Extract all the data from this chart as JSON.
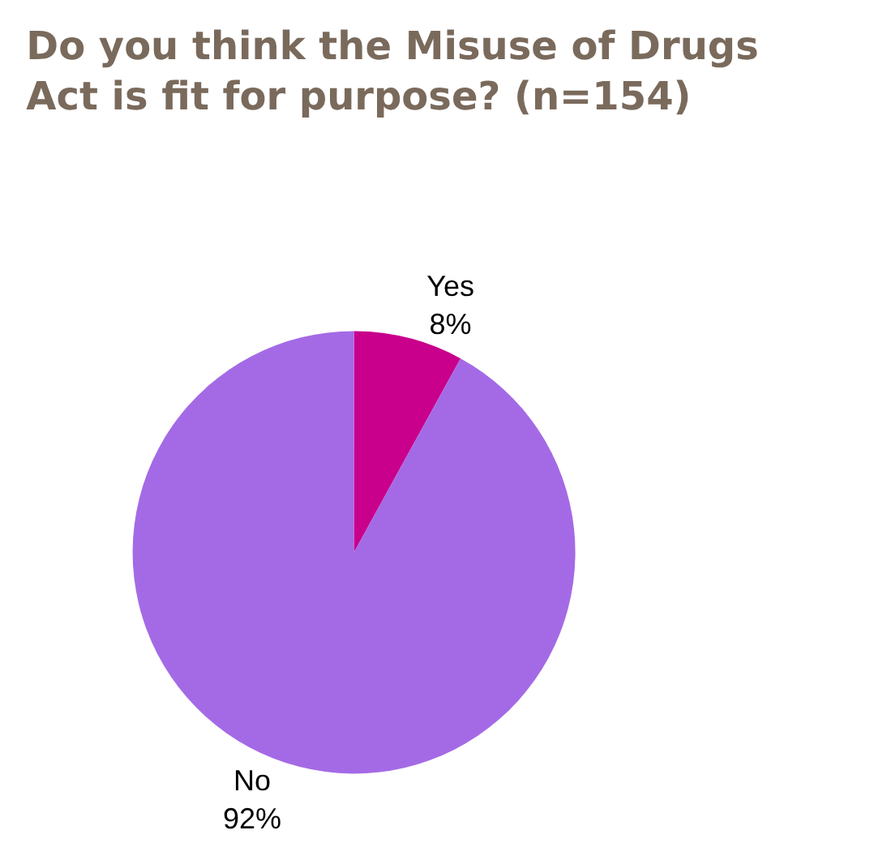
{
  "chart_data": {
    "type": "pie",
    "title": "Do you think the Misuse of Drugs Act is fit for purpose? (n=154)",
    "categories": [
      "Yes",
      "No"
    ],
    "values": [
      8,
      92
    ],
    "colors": [
      "#c8008c",
      "#a46ae6"
    ],
    "value_labels": [
      "8%",
      "92%"
    ],
    "legend": false
  }
}
